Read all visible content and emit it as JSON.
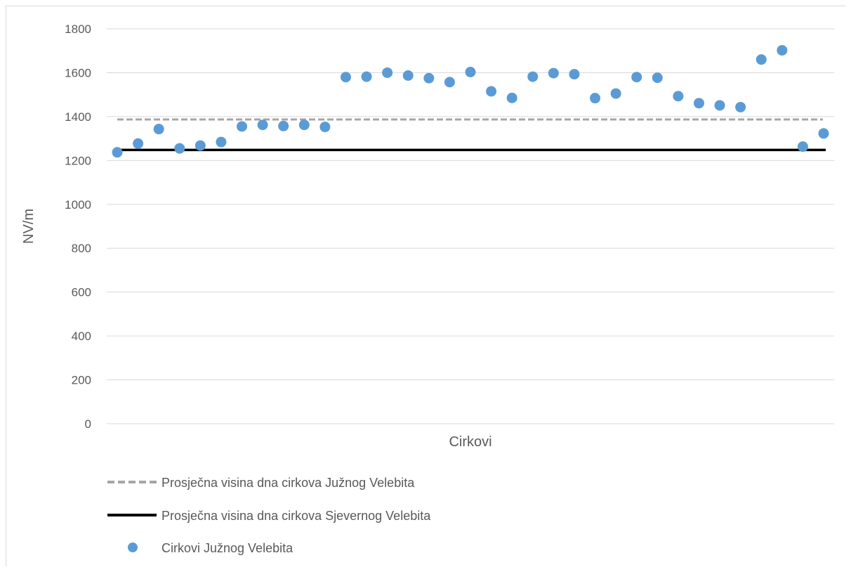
{
  "chart_data": {
    "type": "scatter",
    "title": "",
    "xlabel": "Cirkovi",
    "ylabel": "NV/m",
    "ylim": [
      0,
      1800
    ],
    "yticks": [
      0,
      200,
      400,
      600,
      800,
      1000,
      1200,
      1400,
      1600,
      1800
    ],
    "grid": true,
    "legend_position": "bottom",
    "series": [
      {
        "name": "Cirkovi Južnog Velebita",
        "type": "scatter",
        "color": "#5b9bd5",
        "values": [
          1237,
          1277,
          1343,
          1255,
          1268,
          1284,
          1355,
          1362,
          1357,
          1362,
          1353,
          1580,
          1582,
          1600,
          1587,
          1575,
          1557,
          1603,
          1515,
          1485,
          1582,
          1598,
          1593,
          1484,
          1505,
          1580,
          1577,
          1493,
          1461,
          1451,
          1443,
          1660,
          1702,
          1263,
          1323
        ]
      },
      {
        "name": "Prosječna visina dna cirkova Južnog Velebita",
        "type": "line",
        "style": "dashed",
        "color": "#a6a6a6",
        "value": 1387
      },
      {
        "name": "Prosječna visina dna cirkova Sjevernog Velebita",
        "type": "line",
        "style": "solid",
        "color": "#000000",
        "value": 1248
      }
    ]
  }
}
